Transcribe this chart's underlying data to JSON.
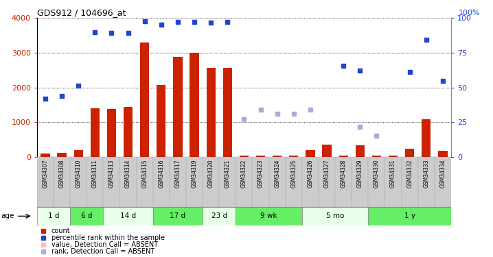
{
  "title": "GDS912 / 104696_at",
  "samples": [
    "GSM34307",
    "GSM34308",
    "GSM34310",
    "GSM34311",
    "GSM34313",
    "GSM34314",
    "GSM34315",
    "GSM34316",
    "GSM34317",
    "GSM34319",
    "GSM34320",
    "GSM34321",
    "GSM34322",
    "GSM34323",
    "GSM34324",
    "GSM34325",
    "GSM34326",
    "GSM34327",
    "GSM34328",
    "GSM34329",
    "GSM34330",
    "GSM34331",
    "GSM34332",
    "GSM34333",
    "GSM34334"
  ],
  "count_values": [
    95,
    115,
    200,
    1400,
    1380,
    1430,
    3300,
    2060,
    2870,
    3000,
    2560,
    2560,
    30,
    30,
    30,
    30,
    200,
    350,
    30,
    340,
    30,
    30,
    240,
    1090,
    180
  ],
  "rank_present": [
    1680,
    1750,
    null,
    null,
    null,
    null,
    null,
    null,
    null,
    null,
    null,
    null,
    null,
    null,
    null,
    null,
    null,
    null,
    null,
    null,
    null,
    null,
    null,
    3380,
    null
  ],
  "pct_rank_present": [
    null,
    null,
    2050,
    3600,
    3580,
    3580,
    3900,
    3800,
    3880,
    3880,
    3870,
    3880,
    null,
    null,
    null,
    null,
    null,
    null,
    2620,
    2480,
    null,
    null,
    2440,
    null,
    2180
  ],
  "rank_absent": [
    null,
    null,
    null,
    null,
    null,
    null,
    null,
    null,
    null,
    null,
    null,
    null,
    1090,
    1360,
    1230,
    1230,
    1350,
    null,
    null,
    860,
    600,
    null,
    null,
    null,
    null
  ],
  "count_absent": [
    null,
    null,
    null,
    null,
    null,
    null,
    null,
    null,
    null,
    null,
    null,
    null,
    null,
    null,
    null,
    null,
    null,
    null,
    null,
    null,
    null,
    null,
    null,
    null,
    null
  ],
  "age_groups": [
    {
      "label": "1 d",
      "start": 0,
      "end": 2,
      "color": "#e8ffe8"
    },
    {
      "label": "6 d",
      "start": 2,
      "end": 4,
      "color": "#66ee66"
    },
    {
      "label": "14 d",
      "start": 4,
      "end": 7,
      "color": "#e8ffe8"
    },
    {
      "label": "17 d",
      "start": 7,
      "end": 10,
      "color": "#66ee66"
    },
    {
      "label": "23 d",
      "start": 10,
      "end": 12,
      "color": "#e8ffe8"
    },
    {
      "label": "9 wk",
      "start": 12,
      "end": 16,
      "color": "#66ee66"
    },
    {
      "label": "5 mo",
      "start": 16,
      "end": 20,
      "color": "#e8ffe8"
    },
    {
      "label": "1 y",
      "start": 20,
      "end": 25,
      "color": "#66ee66"
    }
  ],
  "ylim_left": [
    0,
    4000
  ],
  "ylim_right": [
    0,
    100
  ],
  "yticks_left": [
    0,
    1000,
    2000,
    3000,
    4000
  ],
  "yticks_right": [
    0,
    25,
    50,
    75,
    100
  ],
  "bar_color": "#cc2200",
  "rank_color": "#2244cc",
  "rank_absent_color": "#aaaadd",
  "count_absent_color": "#ffbbbb",
  "xtick_bg": "#cccccc",
  "plot_bg": "#ffffff"
}
